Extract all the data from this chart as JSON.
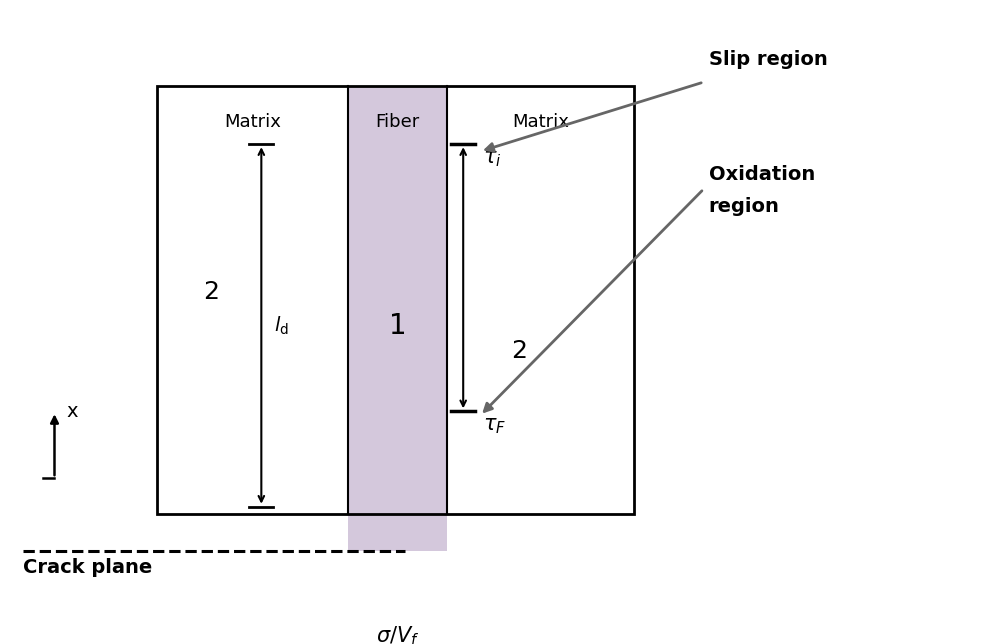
{
  "fig_width": 10.0,
  "fig_height": 6.44,
  "bg_color": "#ffffff",
  "fiber_color": "#d4c8dc",
  "matrix_left_label": "Matrix",
  "matrix_right_label": "Matrix",
  "fiber_label": "Fiber",
  "slip_region_label": "Slip region",
  "oxidation_region_label_1": "Oxidation",
  "oxidation_region_label_2": "region",
  "crack_plane_label": "Crack plane",
  "x_label": "x",
  "arrow_color": "#666666"
}
